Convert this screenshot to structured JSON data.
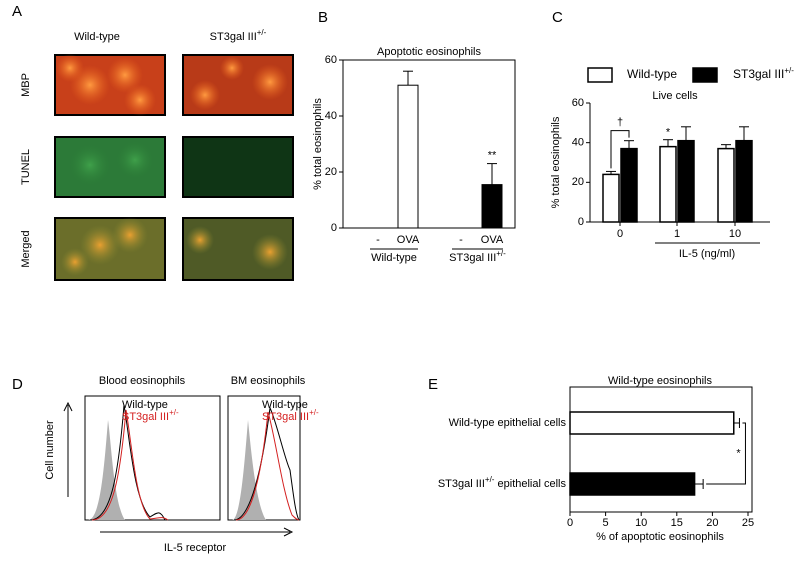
{
  "panel_labels": [
    "A",
    "B",
    "C",
    "D",
    "E"
  ],
  "panel_a": {
    "columns": [
      "Wild-type",
      "ST3gal III+/-"
    ],
    "rows": [
      "MBP",
      "TUNEL",
      "Merged"
    ]
  },
  "panel_d": {
    "titles": [
      "Blood eosinophils",
      "BM eosinophils"
    ],
    "legend": [
      "Wild-type",
      "ST3gal III+/-"
    ],
    "legend_colors": [
      "#000000",
      "#d42020"
    ],
    "y_label": "Cell number",
    "x_label": "IL-5 receptor"
  },
  "chart_data": [
    {
      "type": "bar",
      "title": "Apoptotic eosinophils",
      "y_label": "% total eosinophils",
      "categories": [
        "-",
        "OVA",
        "-",
        "OVA"
      ],
      "groups": [
        "Wild-type",
        "ST3gal III+/-"
      ],
      "values": [
        null,
        51,
        null,
        15.5
      ],
      "errors": [
        null,
        5,
        null,
        7.5
      ],
      "colors": [
        "#ffffff",
        "#ffffff",
        "#000000",
        "#000000"
      ],
      "ylim": [
        0,
        60
      ],
      "yticks": [
        0,
        20,
        40,
        60
      ],
      "significance": "**"
    },
    {
      "type": "grouped_bar",
      "title": "Live cells",
      "y_label": "% total eosinophils",
      "x_label": "IL-5 (ng/ml)",
      "categories": [
        "0",
        "1",
        "10"
      ],
      "series": [
        {
          "name": "Wild-type",
          "color": "#ffffff",
          "values": [
            24,
            38,
            37
          ],
          "errors": [
            1.5,
            3.5,
            2
          ]
        },
        {
          "name": "ST3gal III+/-",
          "color": "#000000",
          "values": [
            37,
            41,
            41
          ],
          "errors": [
            4,
            7,
            7
          ]
        }
      ],
      "ylim": [
        0,
        60
      ],
      "yticks": [
        0,
        20,
        40,
        60
      ],
      "annotations": [
        "†",
        "*"
      ]
    },
    {
      "type": "hbar",
      "title": "Wild-type eosinophils",
      "x_label": "% of apoptotic eosinophils",
      "categories": [
        "Wild-type epithelial cells",
        "ST3gal III+/- epithelial cells"
      ],
      "values": [
        23,
        17.5
      ],
      "errors": [
        0.8,
        1.2
      ],
      "colors": [
        "#ffffff",
        "#000000"
      ],
      "xlim": [
        0,
        25
      ],
      "xticks": [
        0,
        5,
        10,
        15,
        20,
        25
      ],
      "significance": "*"
    }
  ]
}
